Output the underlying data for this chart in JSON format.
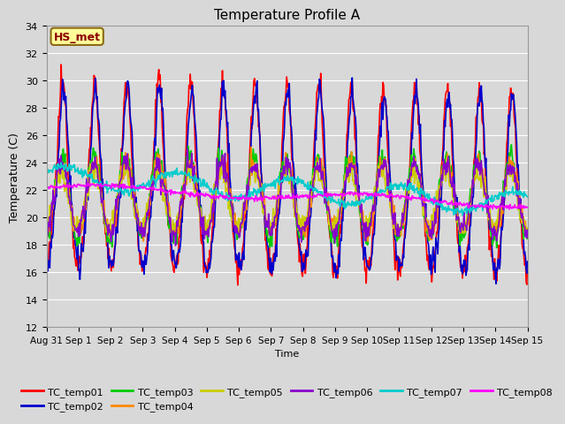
{
  "title": "Temperature Profile A",
  "xlabel": "Time",
  "ylabel": "Temperature (C)",
  "ylim": [
    12,
    34
  ],
  "yticks": [
    12,
    14,
    16,
    18,
    20,
    22,
    24,
    26,
    28,
    30,
    32,
    34
  ],
  "background_color": "#d8d8d8",
  "plot_bg_color": "#d8d8d8",
  "hs_met_label": "HS_met",
  "series": [
    {
      "name": "TC_temp01",
      "color": "#ff0000"
    },
    {
      "name": "TC_temp02",
      "color": "#0000cc"
    },
    {
      "name": "TC_temp03",
      "color": "#00cc00"
    },
    {
      "name": "TC_temp04",
      "color": "#ff8800"
    },
    {
      "name": "TC_temp05",
      "color": "#cccc00"
    },
    {
      "name": "TC_temp06",
      "color": "#8800cc"
    },
    {
      "name": "TC_temp07",
      "color": "#00cccc"
    },
    {
      "name": "TC_temp08",
      "color": "#ff00ff"
    }
  ],
  "xtick_labels": [
    "Aug 31",
    "Sep 1",
    "Sep 2",
    "Sep 3",
    "Sep 4",
    "Sep 5",
    "Sep 6",
    "Sep 7",
    "Sep 8",
    "Sep 9",
    "Sep 10",
    "Sep 11",
    "Sep 12",
    "Sep 13",
    "Sep 14",
    "Sep 15"
  ],
  "n_days": 15,
  "points_per_day": 48
}
